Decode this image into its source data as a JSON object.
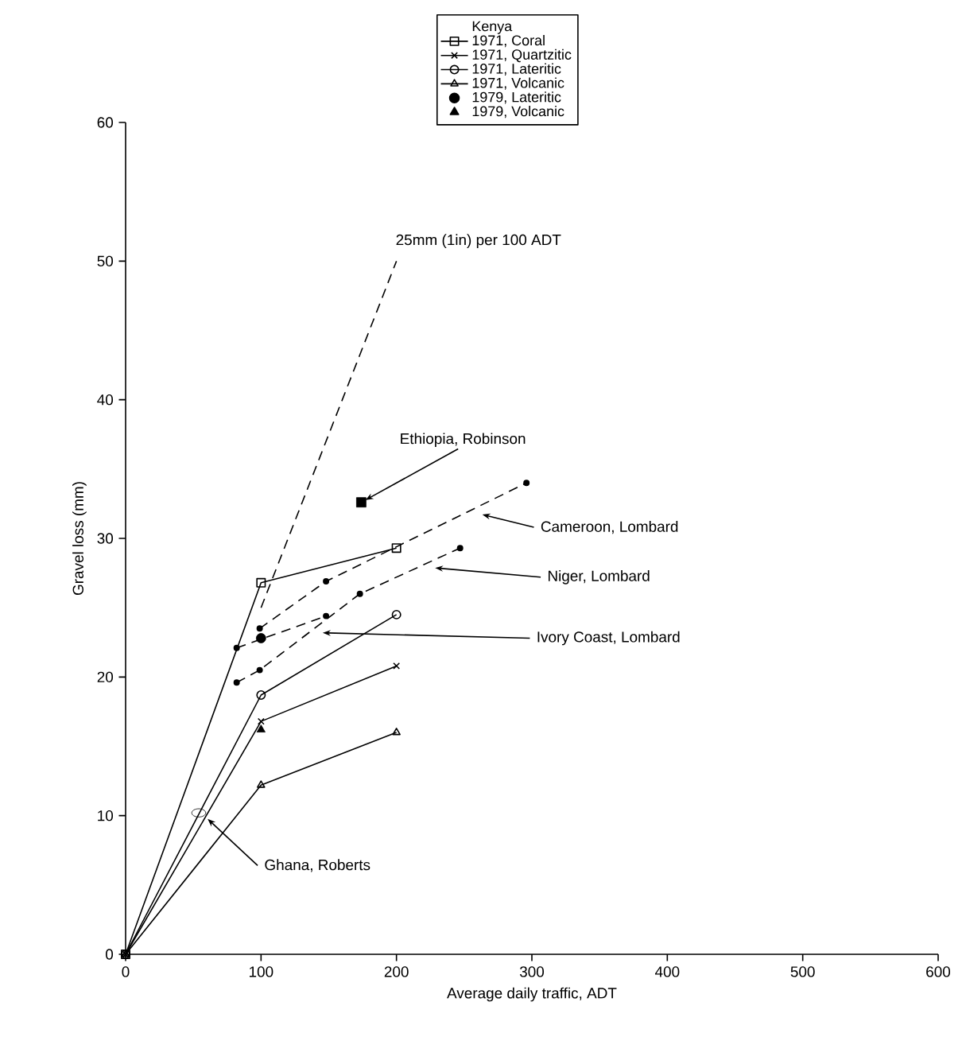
{
  "chart_data": {
    "type": "line",
    "xlabel": "Average daily traffic, ADT",
    "ylabel": "Gravel loss (mm)",
    "legend_title": "Kenya",
    "legend": "top",
    "xlim": [
      0,
      600
    ],
    "ylim": [
      0,
      60
    ],
    "xticks": [
      0,
      100,
      200,
      300,
      400,
      500,
      600
    ],
    "yticks": [
      0,
      10,
      20,
      30,
      40,
      50,
      60
    ],
    "grid": false,
    "series": [
      {
        "name": "1971, Coral",
        "marker": "square",
        "line_style": "solid",
        "color": "#000000",
        "x": [
          0,
          100,
          200
        ],
        "values": [
          0,
          26.8,
          29.3
        ]
      },
      {
        "name": "1971, Quartzitic",
        "marker": "cross",
        "line_style": "solid",
        "color": "#000000",
        "x": [
          0,
          100,
          200
        ],
        "values": [
          0,
          16.8,
          20.8
        ]
      },
      {
        "name": "1971, Lateritic",
        "marker": "circle",
        "line_style": "solid",
        "color": "#000000",
        "x": [
          0,
          100,
          200
        ],
        "values": [
          0,
          18.7,
          24.5
        ]
      },
      {
        "name": "1971, Volcanic",
        "marker": "triangle",
        "line_style": "solid",
        "color": "#000000",
        "x": [
          0,
          100,
          200
        ],
        "values": [
          0,
          12.2,
          16.0
        ]
      },
      {
        "name": "1979, Lateritic",
        "type": "scatter",
        "marker": "circle",
        "color": "#000000",
        "x": [
          100
        ],
        "values": [
          22.8
        ]
      },
      {
        "name": "1979, Volcanic",
        "type": "scatter",
        "marker": "triangle",
        "color": "#000000",
        "x": [
          100
        ],
        "values": [
          16.2
        ]
      },
      {
        "marker": "none",
        "line_style": "dashed",
        "color": "#000000",
        "x": [
          100,
          200
        ],
        "values": [
          25,
          50
        ]
      },
      {
        "type": "scatter",
        "marker": "square",
        "color": "#000000",
        "x": [
          174
        ],
        "values": [
          32.6
        ]
      },
      {
        "marker": "circle",
        "line_style": "dashed",
        "color": "#000000",
        "x": [
          99,
          148,
          296
        ],
        "values": [
          23.5,
          26.9,
          34.0
        ]
      },
      {
        "marker": "circle",
        "line_style": "dashed",
        "color": "#000000",
        "x": [
          82,
          99,
          173,
          247
        ],
        "values": [
          19.6,
          20.5,
          26.0,
          29.3
        ]
      },
      {
        "marker": "circle",
        "line_style": "dashed",
        "color": "#000000",
        "x": [
          82,
          148
        ],
        "values": [
          22.1,
          24.4
        ]
      },
      {
        "type": "scatter",
        "marker": "diamond",
        "color": "#000000",
        "x": [
          54
        ],
        "values": [
          10.2
        ]
      }
    ],
    "annotations": [
      {
        "text": "25mm (1in) per 100 ADT",
        "x": 200,
        "y": 50
      },
      {
        "text": "Ethiopia, Robinson",
        "x": 174,
        "y": 32.6
      },
      {
        "text": "Cameroon, Lombard",
        "x": 260,
        "y": 31.8
      },
      {
        "text": "Niger, Lombard",
        "x": 225,
        "y": 27.9
      },
      {
        "text": "Ivory Coast, Lombard",
        "x": 142,
        "y": 23.2
      },
      {
        "text": "Ghana, Roberts",
        "x": 58,
        "y": 10
      }
    ]
  }
}
